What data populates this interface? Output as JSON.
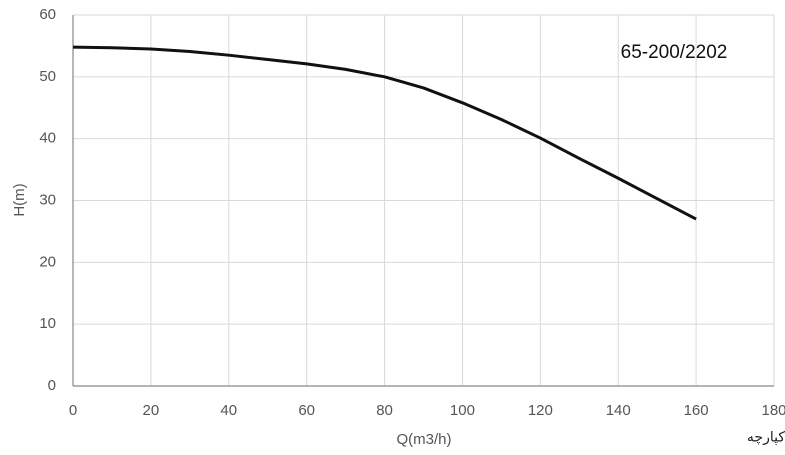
{
  "chart_data": {
    "type": "line",
    "annotation": "65-200/2202",
    "watermark": "کپارچه",
    "xlabel": "Q(m3/h)",
    "ylabel": "H(m)",
    "x": [
      0,
      10,
      20,
      30,
      40,
      50,
      60,
      70,
      80,
      90,
      100,
      110,
      120,
      130,
      140,
      150,
      160
    ],
    "series": [
      {
        "color": "#111111",
        "values": [
          54.8,
          54.7,
          54.5,
          54.1,
          53.5,
          52.8,
          52.1,
          51.2,
          50.0,
          48.2,
          45.8,
          43.1,
          40.1,
          36.8,
          33.6,
          30.3,
          27.0
        ]
      }
    ],
    "xlim": [
      0,
      180
    ],
    "ylim": [
      0,
      60
    ],
    "xticks": [
      0,
      20,
      40,
      60,
      80,
      100,
      120,
      140,
      160,
      180
    ],
    "yticks": [
      0,
      10,
      20,
      30,
      40,
      50,
      60
    ],
    "grid": true
  }
}
